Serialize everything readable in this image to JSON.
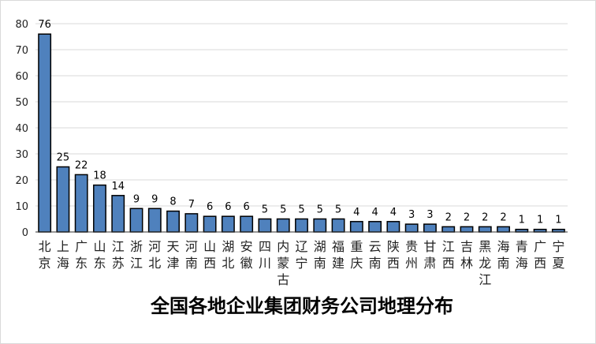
{
  "chart_data": {
    "type": "bar",
    "title": "全国各地企业集团财务公司地理分布",
    "categories": [
      "北京",
      "上海",
      "广东",
      "山东",
      "江苏",
      "浙江",
      "河北",
      "天津",
      "河南",
      "山西",
      "湖北",
      "安徽",
      "四川",
      "内蒙古",
      "辽宁",
      "湖南",
      "福建",
      "重庆",
      "云南",
      "陕西",
      "贵州",
      "甘肃",
      "江西",
      "吉林",
      "黑龙江",
      "海南",
      "青海",
      "广西",
      "宁夏"
    ],
    "values": [
      76,
      25,
      22,
      18,
      14,
      9,
      9,
      8,
      7,
      6,
      6,
      6,
      5,
      5,
      5,
      5,
      5,
      4,
      4,
      4,
      3,
      3,
      2,
      2,
      2,
      2,
      1,
      1,
      1
    ],
    "y_ticks": [
      0,
      10,
      20,
      30,
      40,
      50,
      60,
      70,
      80
    ],
    "ylim": [
      0,
      80
    ],
    "bar_color": "#4f81bd",
    "bar_stroke": "#000000",
    "grid": true,
    "legend": "none"
  }
}
